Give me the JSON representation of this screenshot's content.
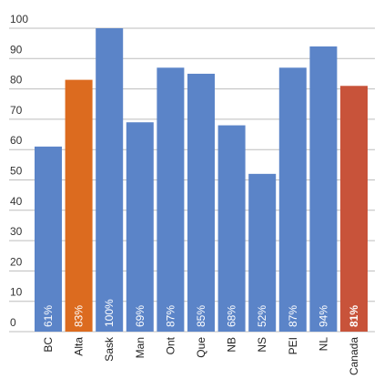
{
  "chart_data": {
    "type": "bar",
    "categories": [
      "BC",
      "Alta",
      "Sask",
      "Man",
      "Ont",
      "Que",
      "NB",
      "NS",
      "PEI",
      "NL",
      "Canada"
    ],
    "values": [
      61,
      83,
      100,
      69,
      87,
      85,
      68,
      52,
      87,
      94,
      81
    ],
    "data_labels": [
      "61%",
      "83%",
      "100%",
      "69%",
      "87%",
      "85%",
      "68%",
      "52%",
      "87%",
      "94%",
      "81%"
    ],
    "ylim": [
      0,
      100
    ],
    "yticks": [
      0,
      10,
      20,
      30,
      40,
      50,
      60,
      70,
      80,
      90,
      100
    ],
    "ytick_labels": [
      "0",
      "10",
      "20",
      "30",
      "40",
      "50",
      "60",
      "70",
      "80",
      "90",
      "100"
    ],
    "grid": true,
    "colors": {
      "default": "#5b84c8",
      "highlight_alta": "#dc6b1f",
      "highlight_canada": "#c8533a"
    },
    "bar_colors": [
      "default",
      "highlight_alta",
      "default",
      "default",
      "default",
      "default",
      "default",
      "default",
      "default",
      "default",
      "highlight_canada"
    ],
    "bold_labels": [
      "Canada"
    ],
    "title": "",
    "xlabel": "",
    "ylabel": ""
  }
}
